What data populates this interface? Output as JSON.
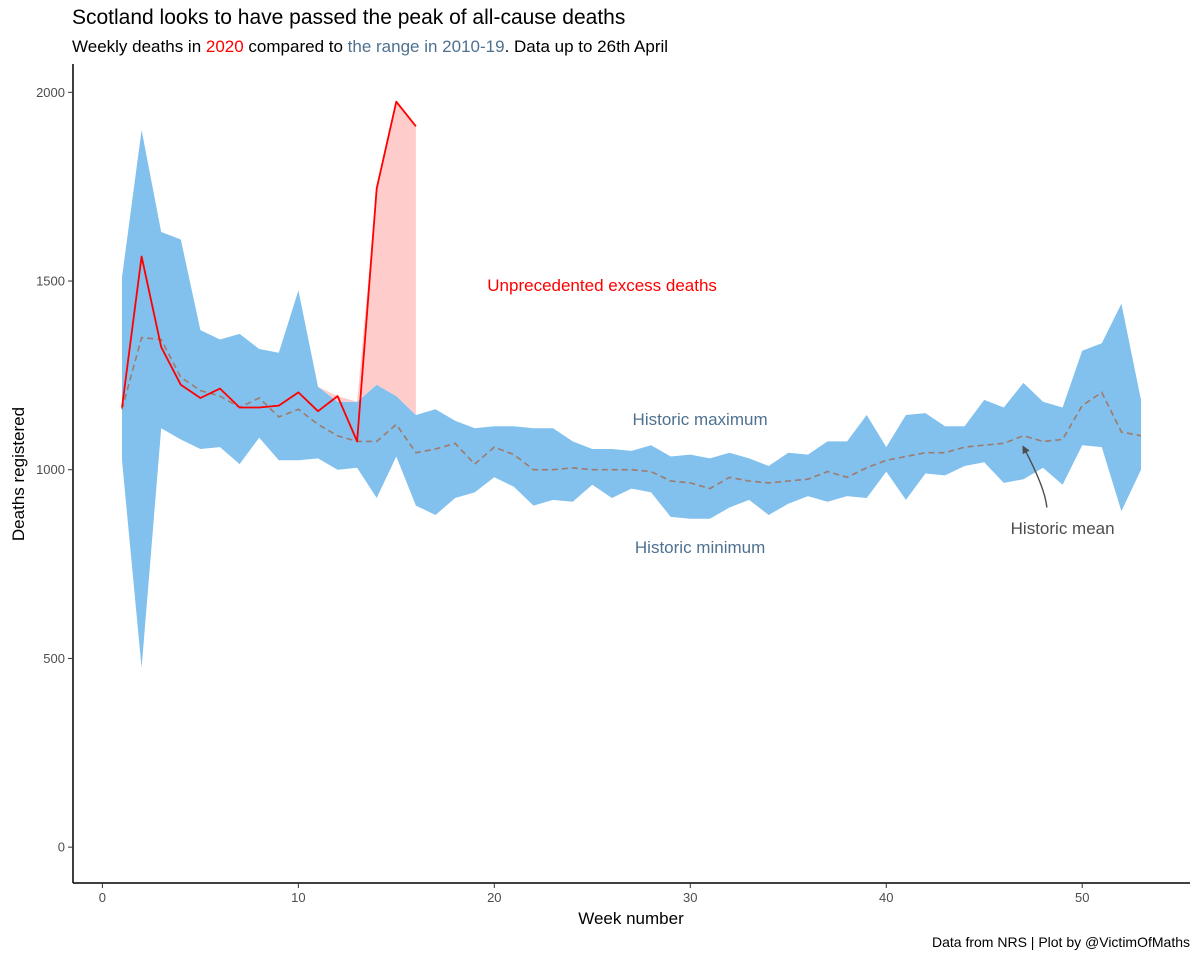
{
  "title": "Scotland looks to have passed the peak of all-cause deaths",
  "subtitle": {
    "part1": "Weekly deaths in ",
    "highlight_year": "2020",
    "part2": " compared to ",
    "highlight_range": "the range in 2010-19",
    "part3": ". Data up to 26th April"
  },
  "caption": "Data from NRS | Plot by @VictimOfMaths",
  "colors": {
    "range_fill": "#82c0ed",
    "current_line": "#ff0000",
    "excess_fill": "#ffcccc",
    "mean_line": "#a07a6a",
    "annotation_blue": "#4f7190",
    "annotation_grey": "#4d4d4d"
  },
  "chart_data": {
    "type": "area",
    "title": "Scotland looks to have passed the peak of all-cause deaths",
    "xlabel": "Week number",
    "ylabel": "Deaths registered",
    "xlim": [
      -1.5,
      55.5
    ],
    "ylim": [
      -95,
      2075
    ],
    "x_ticks": [
      0,
      10,
      20,
      30,
      40,
      50
    ],
    "y_ticks": [
      0,
      500,
      1000,
      1500,
      2000
    ],
    "grid": false,
    "legend": "none",
    "series": [
      {
        "role": "historic-max",
        "x": [
          1,
          2,
          3,
          4,
          5,
          6,
          7,
          8,
          9,
          10,
          11,
          12,
          13,
          14,
          15,
          16,
          17,
          18,
          19,
          20,
          21,
          22,
          23,
          24,
          25,
          26,
          27,
          28,
          29,
          30,
          31,
          32,
          33,
          34,
          35,
          36,
          37,
          38,
          39,
          40,
          41,
          42,
          43,
          44,
          45,
          46,
          47,
          48,
          49,
          50,
          51,
          52,
          53
        ],
        "values": [
          1510,
          1900,
          1630,
          1610,
          1370,
          1345,
          1360,
          1320,
          1310,
          1475,
          1220,
          1180,
          1180,
          1225,
          1195,
          1145,
          1160,
          1130,
          1110,
          1115,
          1115,
          1110,
          1110,
          1075,
          1055,
          1055,
          1050,
          1065,
          1035,
          1040,
          1030,
          1045,
          1030,
          1010,
          1045,
          1040,
          1075,
          1075,
          1145,
          1060,
          1145,
          1150,
          1115,
          1115,
          1185,
          1165,
          1230,
          1180,
          1165,
          1315,
          1335,
          1440,
          1185
        ]
      },
      {
        "role": "historic-min",
        "x": [
          1,
          2,
          3,
          4,
          5,
          6,
          7,
          8,
          9,
          10,
          11,
          12,
          13,
          14,
          15,
          16,
          17,
          18,
          19,
          20,
          21,
          22,
          23,
          24,
          25,
          26,
          27,
          28,
          29,
          30,
          31,
          32,
          33,
          34,
          35,
          36,
          37,
          38,
          39,
          40,
          41,
          42,
          43,
          44,
          45,
          46,
          47,
          48,
          49,
          50,
          51,
          52,
          53
        ],
        "values": [
          1025,
          475,
          1110,
          1080,
          1055,
          1060,
          1015,
          1085,
          1025,
          1025,
          1030,
          1000,
          1005,
          925,
          1035,
          905,
          880,
          925,
          940,
          980,
          955,
          905,
          920,
          915,
          960,
          925,
          950,
          940,
          875,
          870,
          870,
          900,
          920,
          880,
          910,
          930,
          915,
          930,
          925,
          995,
          920,
          990,
          985,
          1010,
          1020,
          965,
          975,
          1005,
          960,
          1065,
          1060,
          890,
          1000
        ]
      },
      {
        "role": "historic-mean",
        "x": [
          1,
          2,
          3,
          4,
          5,
          6,
          7,
          8,
          9,
          10,
          11,
          12,
          13,
          14,
          15,
          16,
          17,
          18,
          19,
          20,
          21,
          22,
          23,
          24,
          25,
          26,
          27,
          28,
          29,
          30,
          31,
          32,
          33,
          34,
          35,
          36,
          37,
          38,
          39,
          40,
          41,
          42,
          43,
          44,
          45,
          46,
          47,
          48,
          49,
          50,
          51,
          52,
          53
        ],
        "values": [
          1160,
          1350,
          1345,
          1245,
          1210,
          1195,
          1165,
          1190,
          1140,
          1160,
          1120,
          1090,
          1075,
          1075,
          1120,
          1045,
          1055,
          1070,
          1015,
          1060,
          1040,
          1000,
          1000,
          1005,
          1000,
          1000,
          1000,
          995,
          970,
          965,
          950,
          980,
          970,
          965,
          970,
          975,
          995,
          980,
          1005,
          1025,
          1035,
          1045,
          1045,
          1060,
          1065,
          1070,
          1090,
          1075,
          1080,
          1170,
          1205,
          1100,
          1090
        ]
      },
      {
        "name": "2020",
        "role": "2020",
        "x": [
          1,
          2,
          3,
          4,
          5,
          6,
          7,
          8,
          9,
          10,
          11,
          12,
          13,
          14,
          15,
          16
        ],
        "values": [
          1165,
          1565,
          1325,
          1225,
          1190,
          1215,
          1165,
          1165,
          1170,
          1205,
          1155,
          1195,
          1075,
          1745,
          1975,
          1910
        ]
      }
    ],
    "annotations": [
      {
        "text": "Unprecedented excess deaths",
        "x": 25.5,
        "y": 1490,
        "color": "#ff0000"
      },
      {
        "text": "Historic maximum",
        "x": 30.5,
        "y": 1135,
        "color": "#4f7190"
      },
      {
        "text": "Historic minimum",
        "x": 30.5,
        "y": 795,
        "color": "#4f7190"
      },
      {
        "text": "Historic mean",
        "x": 49.0,
        "y": 845,
        "color": "#4d4d4d",
        "arrow_from": [
          48.2,
          900
        ],
        "arrow_to": [
          47.0,
          1060
        ]
      }
    ]
  }
}
